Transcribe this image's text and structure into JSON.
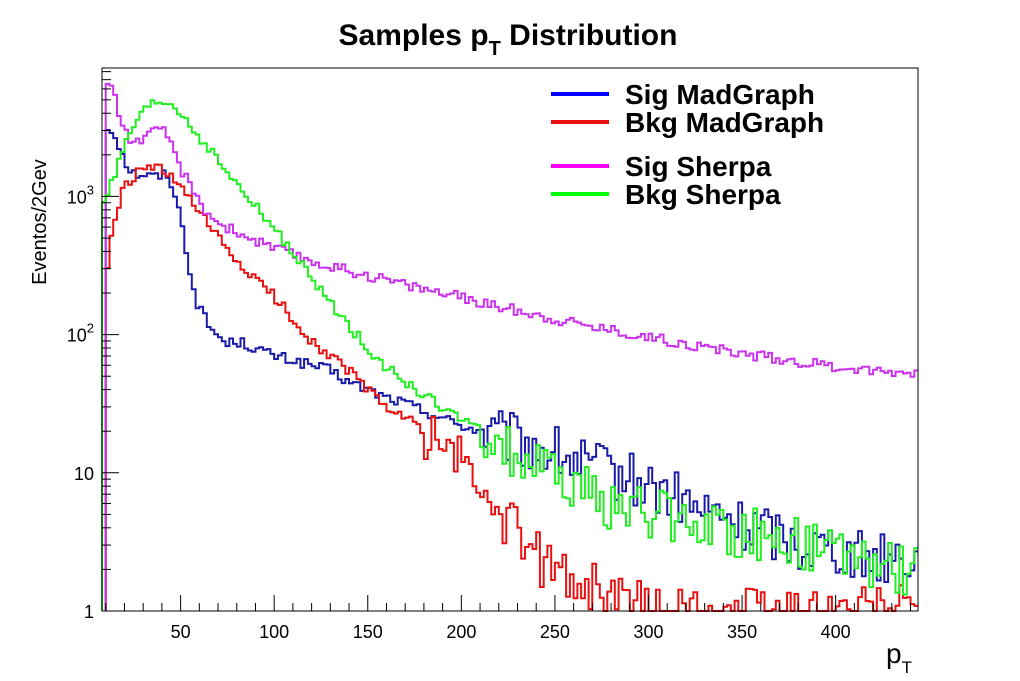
{
  "chart_data": {
    "type": "line",
    "title": "Samples p",
    "title_subscript": "T",
    "title_suffix": " Distribution",
    "xlabel": "p",
    "xlabel_subscript": "T",
    "ylabel": "Eventos/2Gev",
    "x_scale": "linear",
    "y_scale": "log",
    "xlim": [
      8,
      444
    ],
    "ylim": [
      1,
      8500
    ],
    "x_ticks": [
      {
        "value": 50,
        "label": "50"
      },
      {
        "value": 100,
        "label": "100"
      },
      {
        "value": 150,
        "label": "150"
      },
      {
        "value": 200,
        "label": "200"
      },
      {
        "value": 250,
        "label": "250"
      },
      {
        "value": 300,
        "label": "300"
      },
      {
        "value": 350,
        "label": "350"
      },
      {
        "value": 400,
        "label": "400"
      }
    ],
    "y_ticks": [
      {
        "value": 1,
        "label": "1",
        "exp": ""
      },
      {
        "value": 10,
        "label": "10",
        "exp": ""
      },
      {
        "value": 100,
        "label": "10",
        "exp": "2"
      },
      {
        "value": 1000,
        "label": "10",
        "exp": "3"
      }
    ],
    "grid": false,
    "legend_position": "top-right",
    "bin_width": 2,
    "series": [
      {
        "name": "Sig MadGraph",
        "color": "#1a1aaa",
        "legend_color": "#0000ff",
        "points": [
          [
            10,
            3100
          ],
          [
            14,
            3000
          ],
          [
            18,
            2200
          ],
          [
            22,
            1600
          ],
          [
            26,
            1450
          ],
          [
            30,
            1450
          ],
          [
            34,
            1400
          ],
          [
            38,
            1400
          ],
          [
            42,
            1450
          ],
          [
            46,
            1200
          ],
          [
            50,
            700
          ],
          [
            54,
            350
          ],
          [
            58,
            180
          ],
          [
            62,
            140
          ],
          [
            66,
            110
          ],
          [
            70,
            100
          ],
          [
            74,
            85
          ],
          [
            80,
            90
          ],
          [
            90,
            80
          ],
          [
            100,
            70
          ],
          [
            110,
            65
          ],
          [
            120,
            60
          ],
          [
            130,
            55
          ],
          [
            140,
            45
          ],
          [
            150,
            40
          ],
          [
            160,
            35
          ],
          [
            170,
            32
          ],
          [
            180,
            28
          ],
          [
            190,
            25
          ],
          [
            200,
            22
          ],
          [
            210,
            20
          ],
          [
            220,
            18
          ],
          [
            230,
            17
          ],
          [
            240,
            15
          ],
          [
            250,
            14
          ],
          [
            260,
            12
          ],
          [
            270,
            11
          ],
          [
            280,
            10
          ],
          [
            290,
            9
          ],
          [
            300,
            8
          ],
          [
            310,
            7
          ],
          [
            320,
            6
          ],
          [
            330,
            5
          ],
          [
            340,
            5
          ],
          [
            350,
            4
          ],
          [
            360,
            4
          ],
          [
            370,
            3.5
          ],
          [
            380,
            3
          ],
          [
            390,
            3
          ],
          [
            400,
            3
          ],
          [
            410,
            2.5
          ],
          [
            420,
            2.5
          ],
          [
            430,
            2.5
          ],
          [
            440,
            2.5
          ]
        ]
      },
      {
        "name": "Bkg MadGraph",
        "color": "#e81010",
        "legend_color": "#e81010",
        "points": [
          [
            10,
            250
          ],
          [
            14,
            600
          ],
          [
            18,
            1000
          ],
          [
            22,
            1250
          ],
          [
            26,
            1450
          ],
          [
            30,
            1550
          ],
          [
            34,
            1600
          ],
          [
            38,
            1600
          ],
          [
            42,
            1450
          ],
          [
            46,
            1350
          ],
          [
            50,
            1150
          ],
          [
            56,
            900
          ],
          [
            62,
            700
          ],
          [
            70,
            500
          ],
          [
            80,
            340
          ],
          [
            90,
            250
          ],
          [
            100,
            190
          ],
          [
            110,
            130
          ],
          [
            120,
            90
          ],
          [
            130,
            70
          ],
          [
            140,
            55
          ],
          [
            150,
            40
          ],
          [
            160,
            30
          ],
          [
            170,
            25
          ],
          [
            180,
            20
          ],
          [
            190,
            16
          ],
          [
            200,
            12
          ],
          [
            210,
            8
          ],
          [
            220,
            5
          ],
          [
            230,
            3.5
          ],
          [
            240,
            2.5
          ],
          [
            250,
            2
          ],
          [
            260,
            1.7
          ],
          [
            270,
            1.5
          ],
          [
            280,
            1.3
          ],
          [
            290,
            1.1
          ],
          [
            300,
            1.05
          ],
          [
            310,
            1
          ],
          [
            320,
            1
          ],
          [
            440,
            1
          ]
        ]
      },
      {
        "name": "Sig Sherpa",
        "color": "#cc33ee",
        "legend_color": "#ff00ff",
        "points": [
          [
            10,
            7000
          ],
          [
            14,
            6000
          ],
          [
            18,
            3500
          ],
          [
            22,
            2700
          ],
          [
            26,
            2500
          ],
          [
            30,
            2600
          ],
          [
            34,
            2800
          ],
          [
            38,
            3000
          ],
          [
            42,
            2900
          ],
          [
            46,
            2300
          ],
          [
            50,
            1600
          ],
          [
            55,
            1200
          ],
          [
            60,
            900
          ],
          [
            65,
            750
          ],
          [
            70,
            650
          ],
          [
            80,
            550
          ],
          [
            90,
            480
          ],
          [
            100,
            420
          ],
          [
            110,
            380
          ],
          [
            120,
            340
          ],
          [
            130,
            310
          ],
          [
            140,
            290
          ],
          [
            150,
            270
          ],
          [
            160,
            250
          ],
          [
            170,
            230
          ],
          [
            180,
            215
          ],
          [
            190,
            200
          ],
          [
            200,
            185
          ],
          [
            210,
            170
          ],
          [
            220,
            160
          ],
          [
            230,
            150
          ],
          [
            240,
            140
          ],
          [
            250,
            130
          ],
          [
            260,
            122
          ],
          [
            270,
            115
          ],
          [
            280,
            108
          ],
          [
            290,
            102
          ],
          [
            300,
            96
          ],
          [
            310,
            91
          ],
          [
            320,
            86
          ],
          [
            330,
            81
          ],
          [
            340,
            77
          ],
          [
            350,
            73
          ],
          [
            360,
            70
          ],
          [
            370,
            67
          ],
          [
            380,
            64
          ],
          [
            390,
            61
          ],
          [
            400,
            59
          ],
          [
            410,
            57
          ],
          [
            420,
            55
          ],
          [
            430,
            54
          ],
          [
            440,
            54
          ]
        ]
      },
      {
        "name": "Bkg Sherpa",
        "color": "#22ee22",
        "legend_color": "#00ff00",
        "points": [
          [
            8,
            900
          ],
          [
            10,
            1000
          ],
          [
            14,
            1300
          ],
          [
            18,
            1900
          ],
          [
            22,
            2600
          ],
          [
            26,
            3400
          ],
          [
            30,
            4000
          ],
          [
            34,
            4500
          ],
          [
            38,
            4800
          ],
          [
            42,
            4800
          ],
          [
            46,
            4500
          ],
          [
            50,
            4000
          ],
          [
            55,
            3300
          ],
          [
            60,
            2700
          ],
          [
            65,
            2200
          ],
          [
            70,
            1800
          ],
          [
            75,
            1500
          ],
          [
            80,
            1200
          ],
          [
            85,
            1000
          ],
          [
            90,
            850
          ],
          [
            95,
            700
          ],
          [
            100,
            580
          ],
          [
            105,
            480
          ],
          [
            110,
            390
          ],
          [
            115,
            310
          ],
          [
            120,
            250
          ],
          [
            130,
            170
          ],
          [
            140,
            115
          ],
          [
            150,
            80
          ],
          [
            160,
            58
          ],
          [
            170,
            45
          ],
          [
            180,
            36
          ],
          [
            190,
            30
          ],
          [
            200,
            24
          ],
          [
            210,
            20
          ],
          [
            220,
            16
          ],
          [
            230,
            13
          ],
          [
            240,
            11
          ],
          [
            250,
            9
          ],
          [
            260,
            8
          ],
          [
            270,
            7
          ],
          [
            280,
            6
          ],
          [
            290,
            5.5
          ],
          [
            300,
            5
          ],
          [
            320,
            4.5
          ],
          [
            340,
            4
          ],
          [
            360,
            3.5
          ],
          [
            380,
            3
          ],
          [
            400,
            2.5
          ],
          [
            420,
            2.2
          ],
          [
            440,
            2
          ]
        ]
      }
    ]
  }
}
